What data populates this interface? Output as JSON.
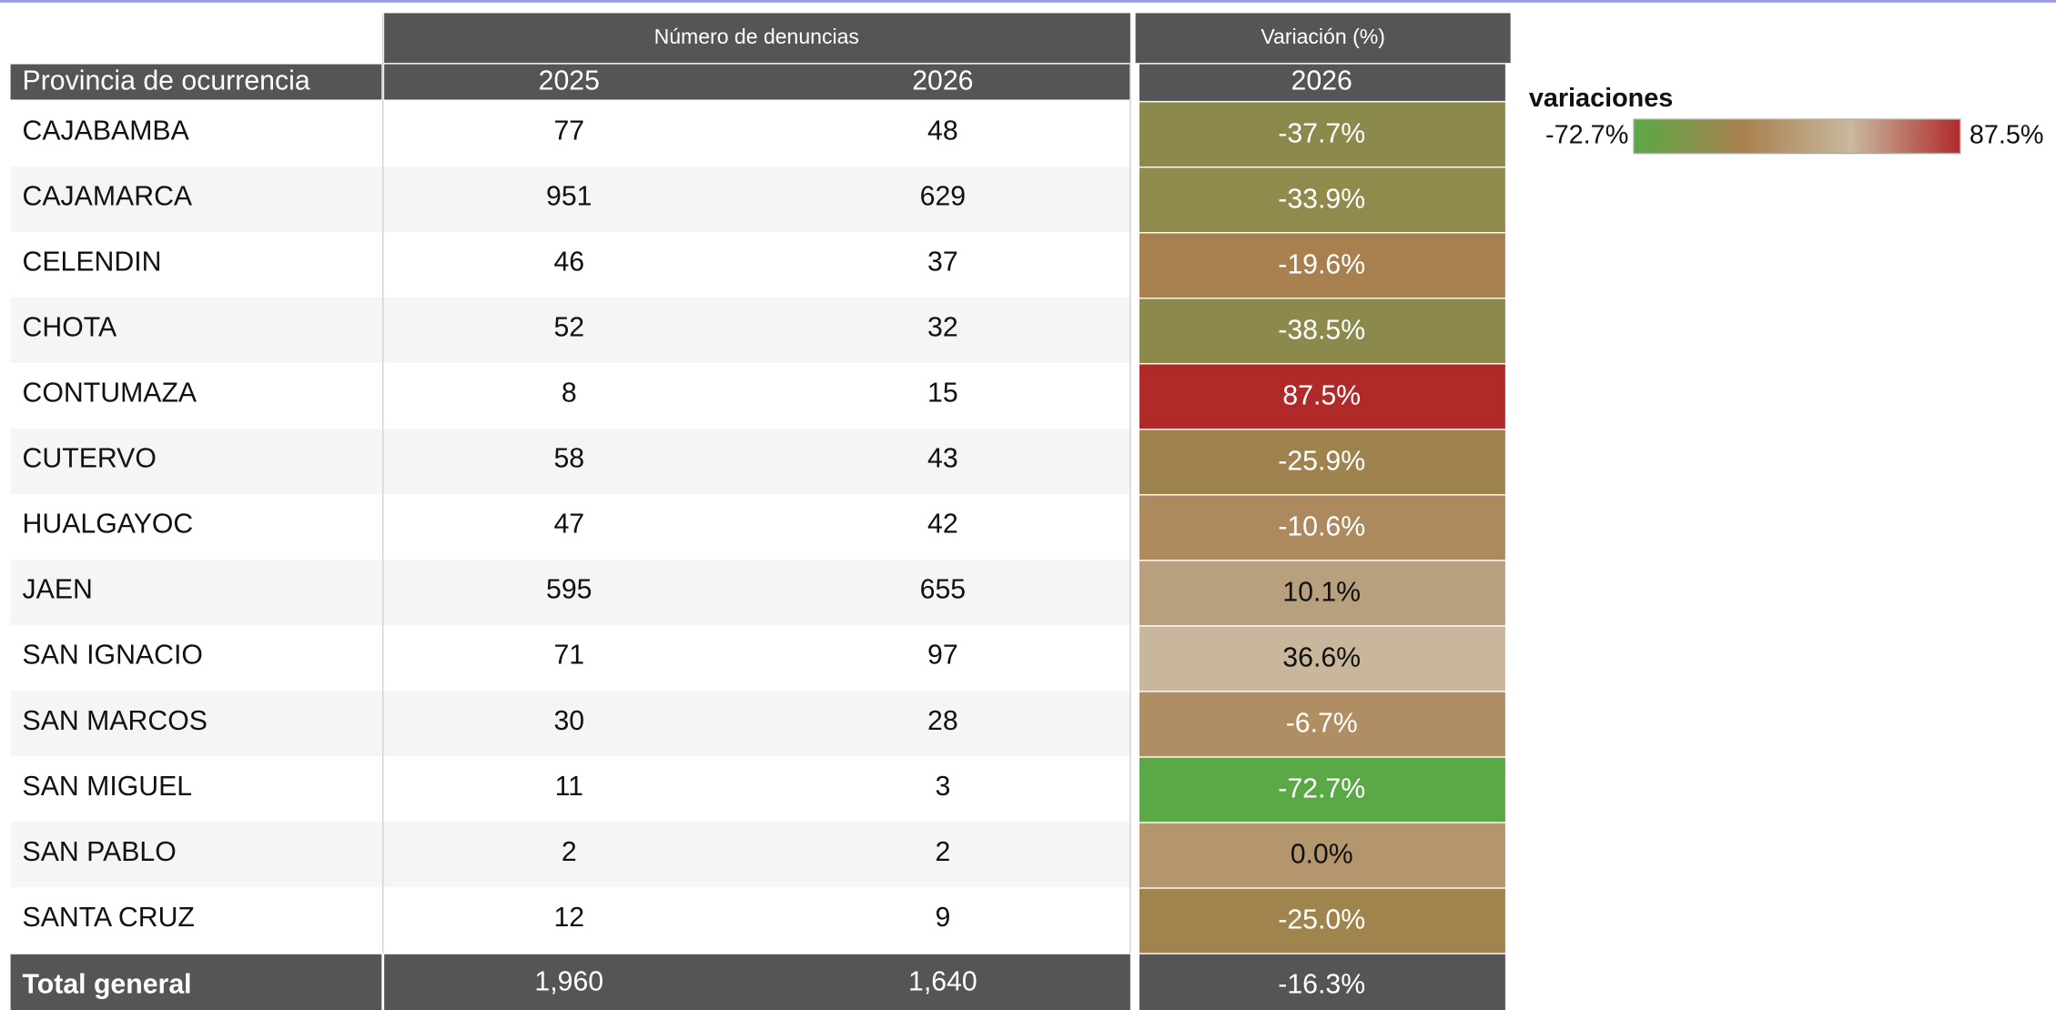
{
  "table": {
    "group_headers": [
      "Número de denuncias",
      "Variación (%)"
    ],
    "row_header": "Provincia de ocurrencia",
    "column_headers": [
      "2025",
      "2026",
      "2026"
    ],
    "rows": [
      {
        "province": "CAJABAMBA",
        "y2025": 77,
        "y2026": 48,
        "variation": "-37.7%",
        "color": "#8b8a4c"
      },
      {
        "province": "CAJAMARCA",
        "y2025": 951,
        "y2026": 629,
        "variation": "-33.9%",
        "color": "#918a4d"
      },
      {
        "province": "CELENDIN",
        "y2025": 46,
        "y2026": 37,
        "variation": "-19.6%",
        "color": "#a88050"
      },
      {
        "province": "CHOTA",
        "y2025": 52,
        "y2026": 32,
        "variation": "-38.5%",
        "color": "#8b8a4c"
      },
      {
        "province": "CONTUMAZA",
        "y2025": 8,
        "y2026": 15,
        "variation": "87.5%",
        "color": "#b02a2a"
      },
      {
        "province": "CUTERVO",
        "y2025": 58,
        "y2026": 43,
        "variation": "-25.9%",
        "color": "#9e834e"
      },
      {
        "province": "HUALGAYOC",
        "y2025": 47,
        "y2026": 42,
        "variation": "-10.6%",
        "color": "#ad8a5e"
      },
      {
        "province": "JAEN",
        "y2025": 595,
        "y2026": 655,
        "variation": "10.1%",
        "color": "#b8a07e"
      },
      {
        "province": "SAN IGNACIO",
        "y2025": 71,
        "y2026": 97,
        "variation": "36.6%",
        "color": "#c8b79c"
      },
      {
        "province": "SAN MARCOS",
        "y2025": 30,
        "y2026": 28,
        "variation": "-6.7%",
        "color": "#b08e64"
      },
      {
        "province": "SAN MIGUEL",
        "y2025": 11,
        "y2026": 3,
        "variation": "-72.7%",
        "color": "#5ba846"
      },
      {
        "province": "SAN PABLO",
        "y2025": 2,
        "y2026": 2,
        "variation": "0.0%",
        "color": "#b4966e"
      },
      {
        "province": "SANTA CRUZ",
        "y2025": 12,
        "y2026": 9,
        "variation": "-25.0%",
        "color": "#a0844e"
      }
    ],
    "total": {
      "label": "Total general",
      "y2025": "1,960",
      "y2026": "1,640",
      "variation": "-16.3%"
    }
  },
  "legend": {
    "title": "variaciones",
    "min": "-72.7%",
    "max": "87.5%",
    "gradient": [
      "#5aa845",
      "#a8804e",
      "#c9b99f",
      "#b02a2a"
    ]
  }
}
